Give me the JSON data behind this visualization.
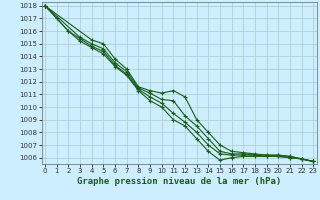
{
  "background_color": "#cceeff",
  "grid_color": "#aacccc",
  "line_color": "#1a5c1a",
  "x": [
    0,
    1,
    2,
    3,
    4,
    5,
    6,
    7,
    8,
    9,
    10,
    11,
    12,
    13,
    14,
    15,
    16,
    17,
    18,
    19,
    20,
    21,
    22,
    23
  ],
  "series": [
    [
      1018.0,
      1017.0,
      1016.0,
      1015.2,
      1014.7,
      1014.2,
      1013.2,
      1012.5,
      1011.3,
      1010.5,
      1010.0,
      1009.0,
      1008.5,
      1007.5,
      1006.5,
      1005.8,
      1006.0,
      1006.1,
      1006.1,
      1006.1,
      1006.1,
      1006.0,
      1005.9,
      1005.7
    ],
    [
      1018.0,
      null,
      1016.0,
      1015.4,
      1014.8,
      1014.4,
      1013.3,
      1012.6,
      1011.4,
      1010.8,
      1010.3,
      1009.5,
      1008.8,
      1008.0,
      1007.0,
      1006.3,
      1006.2,
      1006.2,
      1006.2,
      1006.1,
      1006.1,
      1006.0,
      1005.9,
      1005.7
    ],
    [
      1018.0,
      null,
      null,
      1015.5,
      1015.0,
      1014.6,
      1013.5,
      1012.8,
      1011.5,
      1011.1,
      1010.6,
      1010.5,
      1009.3,
      1008.5,
      1007.5,
      1006.5,
      1006.3,
      1006.3,
      1006.2,
      1006.2,
      1006.2,
      1006.1,
      1005.9,
      1005.7
    ],
    [
      1018.0,
      null,
      null,
      null,
      1015.3,
      1015.0,
      1013.8,
      1013.0,
      1011.6,
      1011.3,
      1011.1,
      1011.3,
      1010.8,
      1009.0,
      1008.0,
      1007.0,
      1006.5,
      1006.4,
      1006.3,
      1006.2,
      1006.2,
      1006.1,
      1005.9,
      1005.7
    ]
  ],
  "ylim": [
    1005.5,
    1018.3
  ],
  "yticks": [
    1006,
    1007,
    1008,
    1009,
    1010,
    1011,
    1012,
    1013,
    1014,
    1015,
    1016,
    1017,
    1018
  ],
  "xlim": [
    -0.3,
    23.3
  ],
  "xticks": [
    0,
    1,
    2,
    3,
    4,
    5,
    6,
    7,
    8,
    9,
    10,
    11,
    12,
    13,
    14,
    15,
    16,
    17,
    18,
    19,
    20,
    21,
    22,
    23
  ],
  "xlabel": "Graphe pression niveau de la mer (hPa)",
  "xlabel_fontsize": 6.5,
  "tick_fontsize": 5.0,
  "marker": "+",
  "marker_size": 3,
  "linewidth": 0.8
}
